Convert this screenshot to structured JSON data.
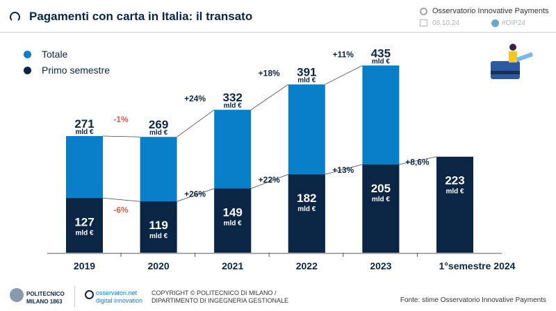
{
  "header": {
    "title": "Pagamenti con carta in Italia: il transato",
    "observatory": "Osservatorio Innovative Payments",
    "date": "08.10.24",
    "hashtag": "#OIP24"
  },
  "colors": {
    "total": "#0a7fc9",
    "semester": "#0b2545",
    "negative": "#e8584a",
    "text": "#0b2545"
  },
  "chart_data": {
    "type": "bar",
    "stacked_overlay": true,
    "categories": [
      "2019",
      "2020",
      "2021",
      "2022",
      "2023",
      "1°semestre 2024"
    ],
    "series": [
      {
        "name": "Totale",
        "values": [
          271,
          269,
          332,
          391,
          435,
          null
        ],
        "labels": [
          "271",
          "269",
          "332",
          "391",
          "435",
          ""
        ],
        "growth": [
          "-1%",
          "+24%",
          "+18%",
          "+11%"
        ]
      },
      {
        "name": "Primo semestre",
        "values": [
          127,
          119,
          149,
          182,
          205,
          223
        ],
        "labels": [
          "127",
          "119",
          "149",
          "182",
          "205",
          "223"
        ],
        "growth": [
          "-6%",
          "+26%",
          "+22%",
          "+13%",
          "+8,6%"
        ]
      }
    ],
    "unit": "mld €",
    "ylim": [
      0,
      435
    ],
    "legend": "top-left",
    "grid": false
  },
  "footer": {
    "logo1": "POLITECNICO MILANO 1863",
    "logo2": "osservatori.net digital innovation",
    "copyright1": "COPYRIGHT © POLITECNICO DI MILANO /",
    "copyright2": "DIPARTIMENTO DI INGEGNERIA GESTIONALE",
    "source": "Fonte: stime Osservatorio Innovative Payments"
  }
}
